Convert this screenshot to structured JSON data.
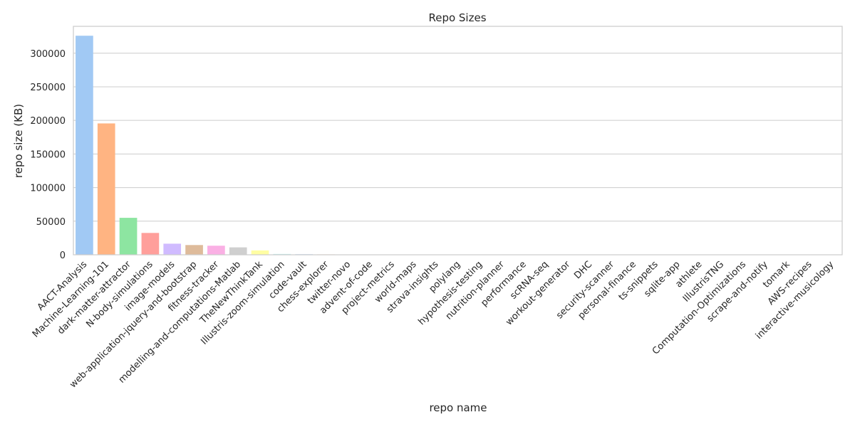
{
  "chart_data": {
    "type": "bar",
    "title": "Repo Sizes",
    "xlabel": "repo name",
    "ylabel": "repo size (KB)",
    "ylim": [
      0,
      340000
    ],
    "yticks": [
      0,
      50000,
      100000,
      150000,
      200000,
      250000,
      300000
    ],
    "grid": true,
    "categories": [
      "AACT-Analysis",
      "Machine-Learning-101",
      "dark-matter-attractor",
      "N-body-simulations",
      "image-models",
      "web-application-jquery-and-bootstrap",
      "fitness-tracker",
      "modelling-and-computations-Matlab",
      "TheNewThinkTank",
      "Illustris-zoom-simulation",
      "code-vault",
      "chess-explorer",
      "twitter-novo",
      "advent-of-code",
      "project-metrics",
      "world-maps",
      "strava-insights",
      "polylang",
      "hypothesis-testing",
      "nutrition-planner",
      "performance",
      "scRNA-seq",
      "workout-generator",
      "DHC",
      "security-scanner",
      "personal-finance",
      "ts-snippets",
      "sqlite-app",
      "athlete",
      "IllustrisTNG",
      "Computation-Optimizations",
      "scrape-and-notify",
      "tomark",
      "AWS-recipes",
      "interactive-musicology"
    ],
    "values": [
      326000,
      195500,
      55000,
      32500,
      16500,
      14500,
      13500,
      11000,
      6500,
      1200,
      800,
      600,
      500,
      400,
      350,
      300,
      280,
      250,
      230,
      210,
      190,
      170,
      150,
      140,
      130,
      120,
      110,
      100,
      90,
      80,
      70,
      60,
      50,
      40,
      30
    ],
    "colors": [
      "#a1c9f4",
      "#ffb482",
      "#8de5a1",
      "#ff9f9b",
      "#d0bbff",
      "#debb9b",
      "#fab0e4",
      "#cfcfcf",
      "#fffea3",
      "#b9f2f0"
    ]
  }
}
